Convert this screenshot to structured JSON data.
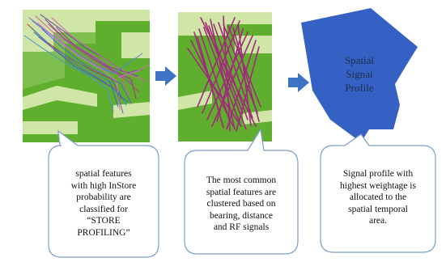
{
  "steps": [
    {
      "image_name": "map-tracks-image",
      "callout_text": "spatial features\nwith high InStore\nprobability are\nclassified for\n“STORE\nPROFILING”"
    },
    {
      "image_name": "clustered-features-image",
      "callout_text": "The most common\nspatial features  are\nclustered based on\nbearing, distance\nand RF signals"
    },
    {
      "image_name": "signal-profile-shape",
      "overlay_label": "Spatial\nSignal\nProfile",
      "callout_text": "Signal profile with\nhighest weightage is\nallocated to the\nspatial temporal\narea."
    }
  ],
  "colors": {
    "map_green": "#5fae2e",
    "map_light": "#cfe6a6",
    "tracks_purple": "#a12a7a",
    "arrow_blue": "#3f74c4",
    "profile_blue": "#3661c4",
    "callout_border": "#7a9fc8"
  }
}
